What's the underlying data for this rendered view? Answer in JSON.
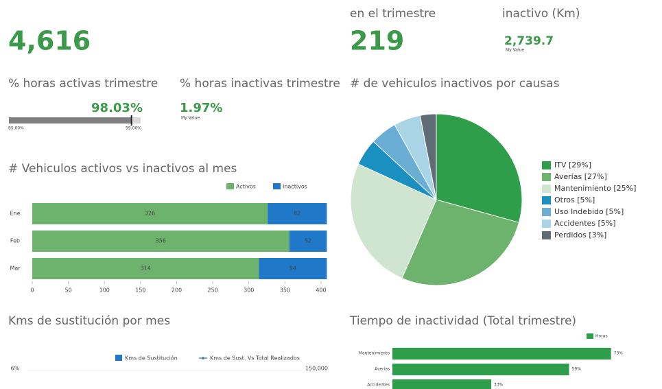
{
  "kpis": [
    {
      "value": "4,616"
    },
    {
      "label": "en el trimestre",
      "value": "219"
    },
    {
      "label": "inactivo (Km)",
      "value": "2,739.7",
      "note": "My Value"
    }
  ],
  "gauge": {
    "title": "% horas activas trimestre",
    "value": 98.03,
    "value_label": "98.03%",
    "min": {
      "value": 85,
      "label": "85.00%"
    },
    "max": {
      "value": 99,
      "label": "99.00%"
    },
    "color": "#7f7f7f"
  },
  "inactive": {
    "title": "% horas inactivas trimestre",
    "value": "1.97%",
    "note": "My Value"
  },
  "chart_data": [
    {
      "type": "stacked-hbar",
      "title": "# Vehiculos activos vs inactivos al mes",
      "categories": [
        "Ene",
        "Feb",
        "Mar"
      ],
      "series": [
        {
          "name": "Activos",
          "color": "#6db36d",
          "values": [
            326,
            356,
            314
          ]
        },
        {
          "name": "Inactivos",
          "color": "#1f78c8",
          "values": [
            82,
            52,
            94
          ]
        }
      ],
      "xlim": [
        0,
        400
      ],
      "xticks": [
        0,
        50,
        100,
        150,
        200,
        250,
        300,
        350,
        400
      ]
    },
    {
      "type": "pie",
      "title": "# de vehiculos inactivos por causas",
      "categories": [
        "ITV [29%]",
        "Averías [27%]",
        "Mantenimiento [25%]",
        "Otros [5%]",
        "Uso Indebido [5%]",
        "Accidentes [5%]",
        "Perdidos [3%]"
      ],
      "values": [
        29,
        27,
        25,
        5,
        5,
        5,
        3
      ],
      "colors": [
        "#2e9e4a",
        "#6db36d",
        "#cfe5cf",
        "#1990c0",
        "#6aaed6",
        "#a8d4e6",
        "#5f6b75"
      ]
    },
    {
      "type": "bar-line",
      "title": "Kms de sustitución por mes",
      "series": [
        {
          "name": "Kms de Sustitución",
          "color": "#1f78c8"
        },
        {
          "name": "Kms de Sust. Vs Total Realizados",
          "color": "#5a8a9a",
          "axis": "y2"
        }
      ],
      "yticks": [
        {
          "value": 6,
          "label": "6%"
        }
      ],
      "y2ticks": [
        {
          "value": 150000,
          "label": "150,000"
        }
      ]
    },
    {
      "type": "hbar",
      "title": "Tiempo de inactividad (Total trimestre)",
      "categories": [
        "Mantenimiento",
        "Averías",
        "Accidentes"
      ],
      "series": [
        {
          "name": "Horas",
          "color": "#2e9e4a",
          "values": [
            73,
            59,
            33
          ],
          "value_labels": [
            "73%",
            "59%",
            "33%"
          ]
        }
      ],
      "xlim": [
        0,
        74
      ]
    }
  ]
}
